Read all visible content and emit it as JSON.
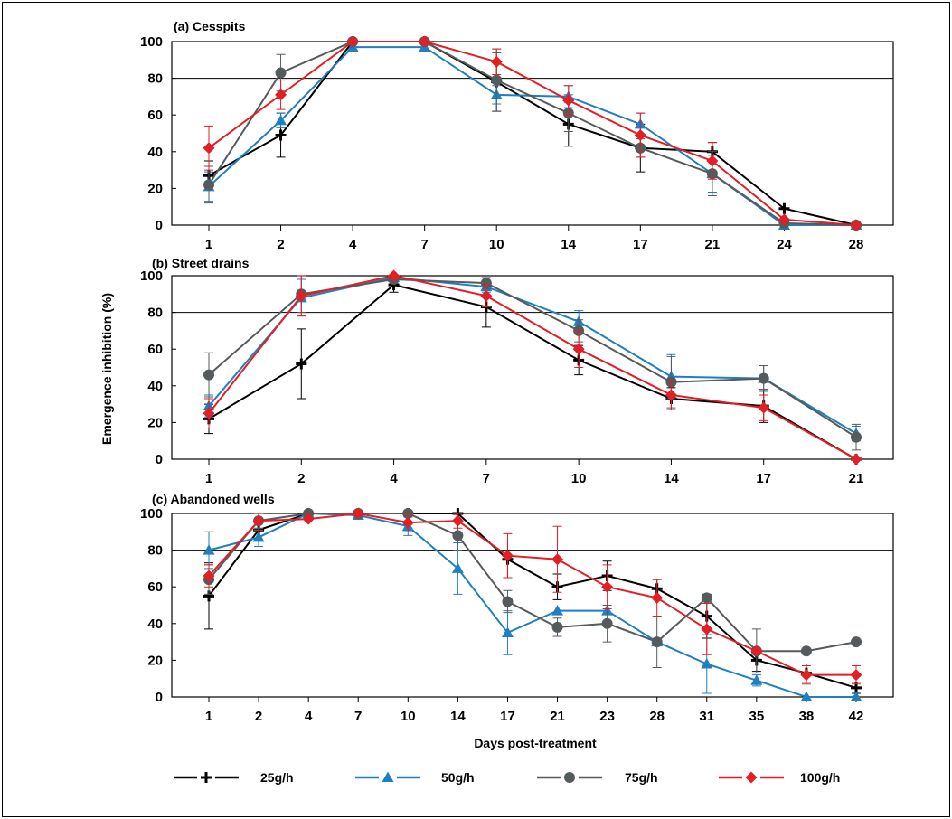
{
  "chart_data": {
    "type": "line",
    "ylabel": "Emergence inhibition (%)",
    "xlabel": "Days post-treatment",
    "reference_line": 80,
    "series_styles": [
      {
        "name": "25g/h",
        "color": "#000000",
        "marker": "plus"
      },
      {
        "name": "50g/h",
        "color": "#1f7fc0",
        "marker": "triangle"
      },
      {
        "name": "75g/h",
        "color": "#555a5c",
        "marker": "circle"
      },
      {
        "name": "100g/h",
        "color": "#e31e24",
        "marker": "diamond"
      }
    ],
    "panels": [
      {
        "title": "(a) Cesspits",
        "ylim": [
          0,
          100
        ],
        "yticks": [
          "0",
          "20",
          "40",
          "60",
          "80",
          "100"
        ],
        "categories": [
          "1",
          "2",
          "4",
          "7",
          "10",
          "14",
          "17",
          "21",
          "24",
          "28"
        ],
        "series": [
          {
            "name": "25g/h",
            "values": [
              27,
              49,
              100,
              100,
              78,
              55,
              42,
              40,
              9,
              0
            ],
            "errors": [
              8,
              12,
              0,
              0,
              16,
              12,
              13,
              5,
              0,
              0
            ]
          },
          {
            "name": "50g/h",
            "values": [
              21,
              57,
              97,
              97,
              71,
              70,
              55,
              28,
              0,
              0
            ],
            "errors": [
              8,
              4,
              0,
              0,
              5,
              6,
              6,
              10,
              0,
              0
            ]
          },
          {
            "name": "75g/h",
            "values": [
              22,
              83,
              100,
              100,
              79,
              61,
              42,
              28,
              1,
              0
            ],
            "errors": [
              10,
              10,
              0,
              0,
              17,
              10,
              5,
              12,
              0,
              0
            ]
          },
          {
            "name": "100g/h",
            "values": [
              42,
              71,
              100,
              100,
              89,
              68,
              49,
              35,
              3,
              0
            ],
            "errors": [
              12,
              8,
              0,
              0,
              7,
              8,
              12,
              10,
              0,
              0
            ]
          }
        ]
      },
      {
        "title": "(b) Street drains",
        "ylim": [
          0,
          100
        ],
        "yticks": [
          "0",
          "20",
          "40",
          "60",
          "80",
          "100"
        ],
        "categories": [
          "1",
          "2",
          "4",
          "7",
          "10",
          "14",
          "17",
          "21"
        ],
        "series": [
          {
            "name": "25g/h",
            "values": [
              22,
              52,
              95,
              83,
              54,
              33,
              29,
              0
            ],
            "errors": [
              8,
              19,
              4,
              11,
              8,
              6,
              9,
              0
            ]
          },
          {
            "name": "50g/h",
            "values": [
              29,
              88,
              99,
              94,
              75,
              45,
              44,
              14
            ],
            "errors": [
              6,
              10,
              3,
              3,
              6,
              12,
              7,
              4
            ]
          },
          {
            "name": "75g/h",
            "values": [
              46,
              90,
              98,
              96,
              70,
              42,
              44,
              12
            ],
            "errors": [
              12,
              10,
              2,
              3,
              6,
              14,
              7,
              7
            ]
          },
          {
            "name": "100g/h",
            "values": [
              25,
              89,
              100,
              89,
              60,
              35,
              28,
              0
            ],
            "errors": [
              8,
              11,
              2,
              6,
              10,
              8,
              7,
              0
            ]
          }
        ]
      },
      {
        "title": "(c) Abandoned wells",
        "ylim": [
          0,
          100
        ],
        "yticks": [
          "0",
          "20",
          "40",
          "60",
          "80",
          "100"
        ],
        "categories": [
          "1",
          "2",
          "4",
          "7",
          "10",
          "14",
          "17",
          "21",
          "23",
          "28",
          "31",
          "35",
          "38",
          "42"
        ],
        "series": [
          {
            "name": "25g/h",
            "values": [
              55,
              91,
              100,
              100,
              100,
              100,
              75,
              60,
              66,
              59,
              44,
              20,
              13,
              5
            ],
            "errors": [
              18,
              6,
              0,
              0,
              0,
              0,
              10,
              7,
              8,
              5,
              12,
              6,
              5,
              3
            ]
          },
          {
            "name": "50g/h",
            "values": [
              80,
              87,
              100,
              99,
              93,
              70,
              35,
              47,
              47,
              30,
              18,
              9,
              0,
              0
            ],
            "errors": [
              10,
              5,
              0,
              0,
              5,
              14,
              12,
              0,
              0,
              0,
              16,
              3,
              0,
              0
            ]
          },
          {
            "name": "75g/h",
            "values": [
              64,
              96,
              100,
              100,
              100,
              88,
              52,
              38,
              40,
              30,
              54,
              25,
              25,
              30
            ],
            "errors": [
              8,
              5,
              0,
              0,
              6,
              8,
              6,
              5,
              10,
              14,
              0,
              12,
              0,
              0
            ]
          },
          {
            "name": "100g/h",
            "values": [
              66,
              96,
              97,
              100,
              95,
              96,
              77,
              75,
              60,
              54,
              37,
              25,
              12,
              12
            ],
            "errors": [
              6,
              5,
              0,
              0,
              5,
              4,
              12,
              18,
              12,
              10,
              14,
              0,
              5,
              5
            ]
          }
        ]
      }
    ]
  }
}
